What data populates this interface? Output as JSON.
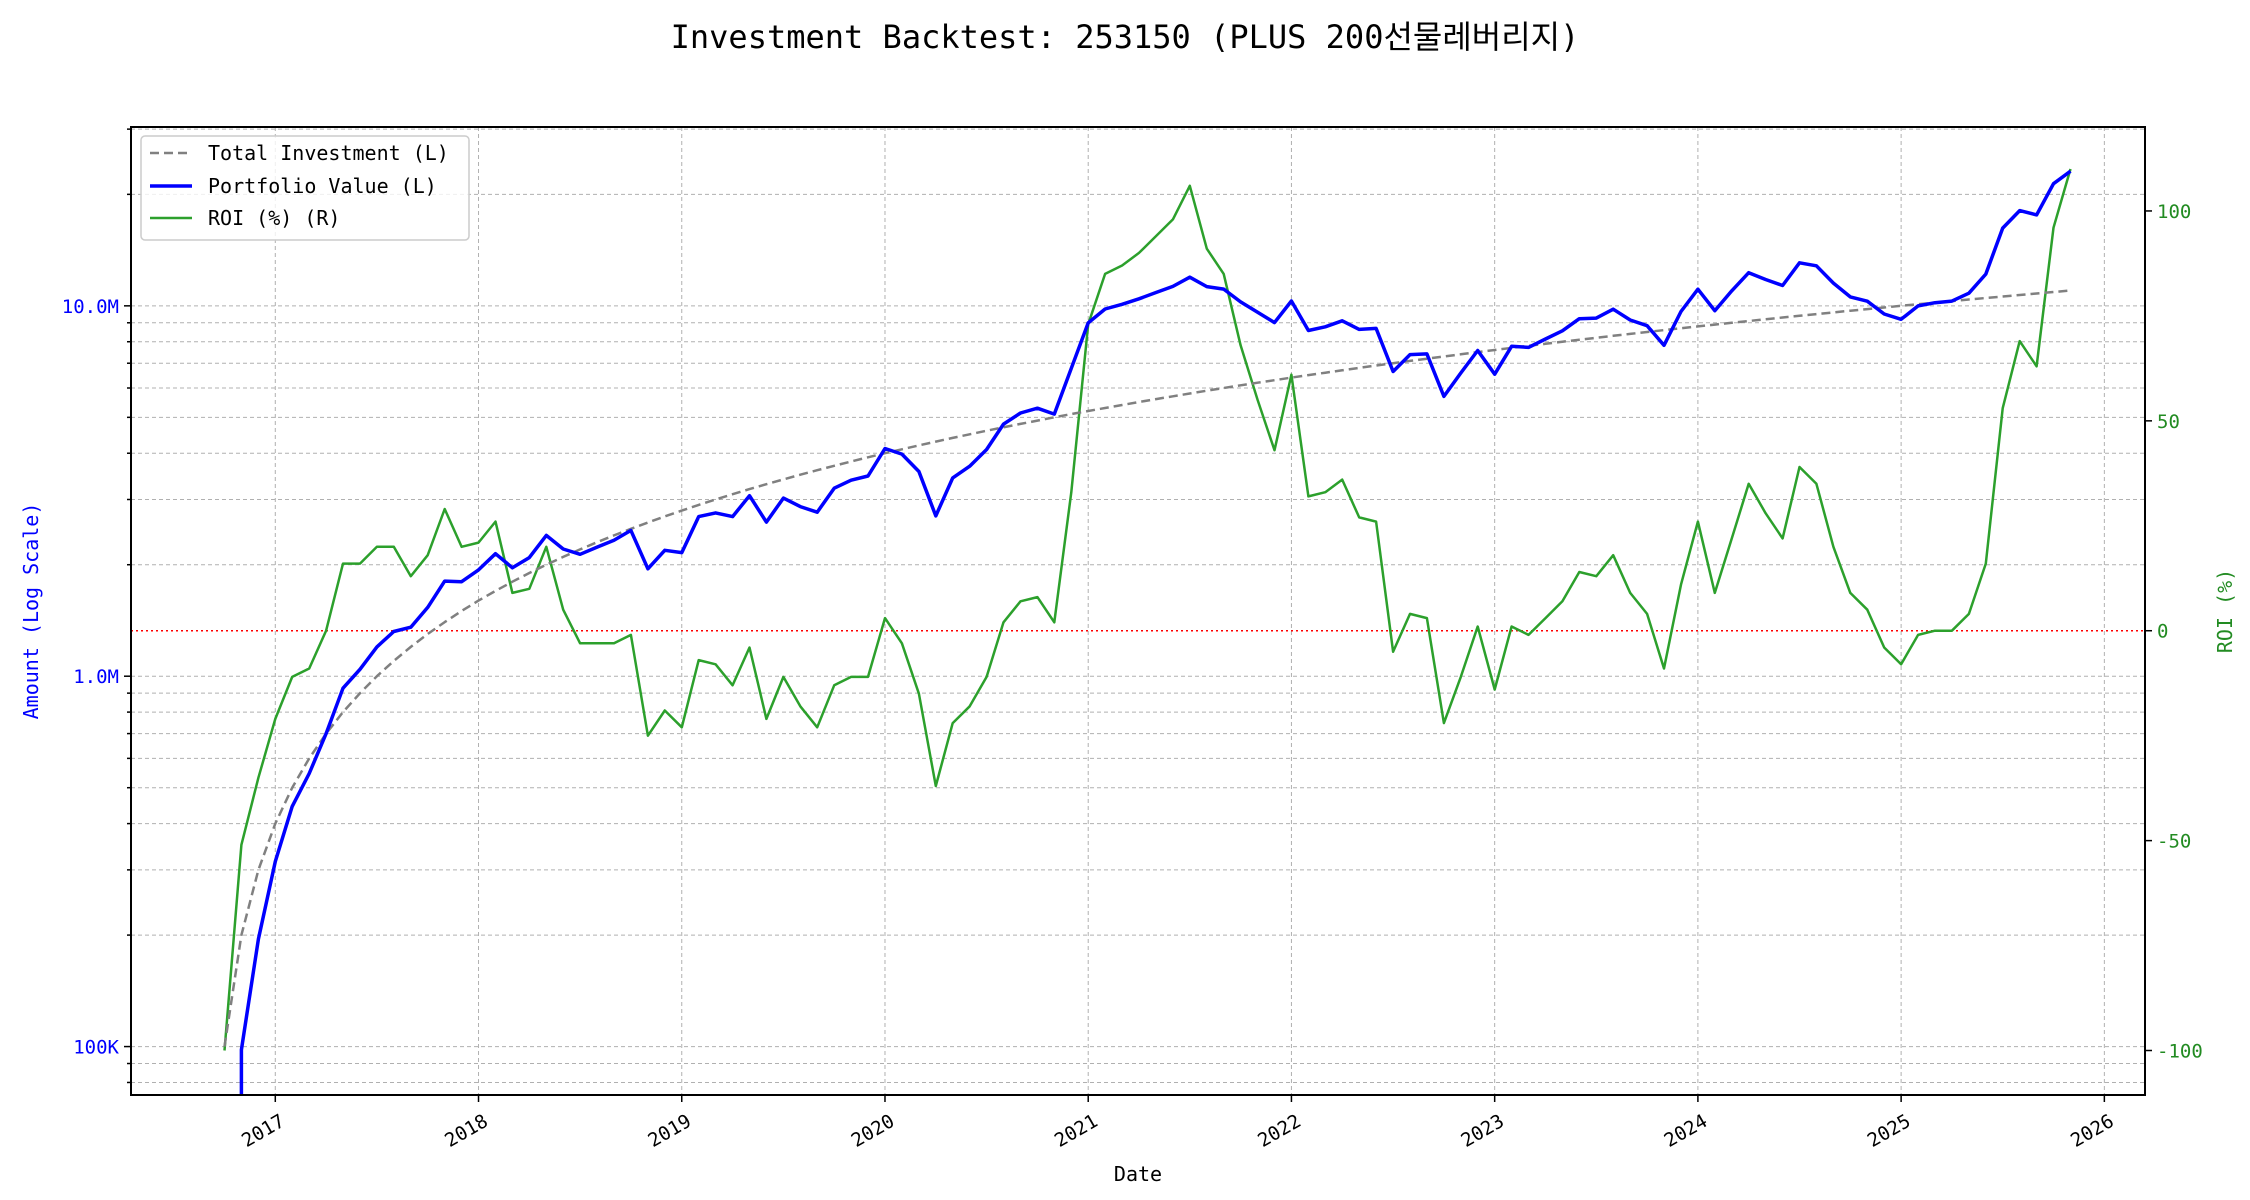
{
  "chart_data": {
    "type": "line",
    "title": "Investment Backtest: 253150 (PLUS 200선물레버리지)",
    "xlabel": "Date",
    "ylabel_left": "Amount (Log Scale)",
    "ylabel_right": "ROI (%)",
    "left_scale": "log",
    "xlim": [
      "2016-04",
      "2026-04"
    ],
    "ylim_left": [
      74000,
      30400000
    ],
    "ylim_right": [
      -110.6,
      120
    ],
    "grid": true,
    "legend_position": "top-left",
    "x_tick_labels": [
      "2017",
      "2018",
      "2019",
      "2020",
      "2021",
      "2022",
      "2023",
      "2024",
      "2025",
      "2026"
    ],
    "left_tick_labels": [
      {
        "value": 100000,
        "label": "100K"
      },
      {
        "value": 1000000,
        "label": "1.0M"
      },
      {
        "value": 10000000,
        "label": "10.0M"
      }
    ],
    "right_tick_labels": [
      {
        "value": -100,
        "label": "-100"
      },
      {
        "value": -50,
        "label": "-50"
      },
      {
        "value": 0,
        "label": "0"
      },
      {
        "value": 50,
        "label": "50"
      },
      {
        "value": 100,
        "label": "100"
      }
    ],
    "reference_line": {
      "axis": "right",
      "value": 0,
      "color": "#ff0000",
      "style": "dotted"
    },
    "x": [
      "2016-10",
      "2016-11",
      "2016-12",
      "2017-01",
      "2017-02",
      "2017-03",
      "2017-04",
      "2017-05",
      "2017-06",
      "2017-07",
      "2017-08",
      "2017-09",
      "2017-10",
      "2017-11",
      "2017-12",
      "2018-01",
      "2018-02",
      "2018-03",
      "2018-04",
      "2018-05",
      "2018-06",
      "2018-07",
      "2018-08",
      "2018-09",
      "2018-10",
      "2018-11",
      "2018-12",
      "2019-01",
      "2019-02",
      "2019-03",
      "2019-04",
      "2019-05",
      "2019-06",
      "2019-07",
      "2019-08",
      "2019-09",
      "2019-10",
      "2019-11",
      "2019-12",
      "2020-01",
      "2020-02",
      "2020-03",
      "2020-04",
      "2020-05",
      "2020-06",
      "2020-07",
      "2020-08",
      "2020-09",
      "2020-10",
      "2020-11",
      "2020-12",
      "2021-01",
      "2021-02",
      "2021-03",
      "2021-04",
      "2021-05",
      "2021-06",
      "2021-07",
      "2021-08",
      "2021-09",
      "2021-10",
      "2021-11",
      "2021-12",
      "2022-01",
      "2022-02",
      "2022-03",
      "2022-04",
      "2022-05",
      "2022-06",
      "2022-07",
      "2022-08",
      "2022-09",
      "2022-10",
      "2022-11",
      "2022-12",
      "2023-01",
      "2023-02",
      "2023-03",
      "2023-04",
      "2023-05",
      "2023-06",
      "2023-07",
      "2023-08",
      "2023-09",
      "2023-10",
      "2023-11",
      "2023-12",
      "2024-01",
      "2024-02",
      "2024-03",
      "2024-04",
      "2024-05",
      "2024-06",
      "2024-07",
      "2024-08",
      "2024-09",
      "2024-10",
      "2024-11",
      "2024-12",
      "2025-01",
      "2025-02",
      "2025-03",
      "2025-04",
      "2025-05",
      "2025-06",
      "2025-07",
      "2025-08",
      "2025-09",
      "2025-10",
      "2025-11"
    ],
    "series": [
      {
        "name": "Total Investment (L)",
        "axis": "left",
        "color": "#808080",
        "style": "dashed",
        "values": [
          100000,
          200000,
          300000,
          400000,
          500000,
          600000,
          700000,
          800000,
          900000,
          1000000,
          1100000,
          1200000,
          1300000,
          1400000,
          1500000,
          1600000,
          1700000,
          1800000,
          1900000,
          2000000,
          2100000,
          2200000,
          2300000,
          2400000,
          2500000,
          2600000,
          2700000,
          2800000,
          2900000,
          3000000,
          3100000,
          3200000,
          3300000,
          3400000,
          3500000,
          3600000,
          3700000,
          3800000,
          3900000,
          4000000,
          4100000,
          4200000,
          4300000,
          4400000,
          4500000,
          4600000,
          4700000,
          4800000,
          4900000,
          5000000,
          5100000,
          5200000,
          5300000,
          5400000,
          5500000,
          5600000,
          5700000,
          5800000,
          5900000,
          6000000,
          6100000,
          6200000,
          6300000,
          6400000,
          6500000,
          6600000,
          6700000,
          6800000,
          6900000,
          7000000,
          7100000,
          7200000,
          7300000,
          7400000,
          7500000,
          7600000,
          7700000,
          7800000,
          7900000,
          8000000,
          8100000,
          8200000,
          8300000,
          8400000,
          8500000,
          8600000,
          8700000,
          8800000,
          8900000,
          9000000,
          9100000,
          9200000,
          9300000,
          9400000,
          9500000,
          9600000,
          9700000,
          9800000,
          9900000,
          10000000,
          10100000,
          10200000,
          10300000,
          10400000,
          10500000,
          10600000,
          10700000,
          10800000,
          10900000,
          11000000
        ]
      },
      {
        "name": "Portfolio Value (L)",
        "axis": "left",
        "color": "#0000ff",
        "style": "solid",
        "values": [
          0,
          98000,
          195000,
          316000,
          445000,
          546000,
          700000,
          928000,
          1044000,
          1200000,
          1320000,
          1356000,
          1534000,
          1806000,
          1800000,
          1936000,
          2142000,
          1962000,
          2090000,
          2400000,
          2205000,
          2134000,
          2231000,
          2328000,
          2475000,
          1950000,
          2187000,
          2156000,
          2697000,
          2760000,
          2697000,
          3072000,
          2607000,
          3026000,
          2870000,
          2772000,
          3219000,
          3382000,
          3471000,
          4120000,
          3977000,
          3570000,
          2709000,
          3432000,
          3690000,
          4094000,
          4794000,
          5136000,
          5292000,
          5100000,
          6783000,
          8996000,
          9805000,
          10098000,
          10450000,
          10864000,
          11286000,
          11948000,
          11269000,
          11100000,
          10248000,
          9610000,
          9009000,
          10304000,
          8580000,
          8778000,
          9112000,
          8636000,
          8694000,
          6650000,
          7384000,
          7416000,
          5694000,
          6586000,
          7575000,
          6536000,
          7777000,
          7722000,
          8137000,
          8560000,
          9234000,
          9266000,
          9794000,
          9156000,
          8840000,
          7826000,
          9657000,
          11088000,
          9701000,
          10980000,
          12285000,
          11776000,
          11346000,
          13066000,
          12825000,
          11520000,
          10573000,
          10290000,
          9504000,
          9200000,
          9999000,
          10200000,
          10300000,
          10816000,
          12180000,
          16218000,
          18083000,
          17604000,
          21364000,
          23100000
        ]
      },
      {
        "name": "ROI (%) (R)",
        "axis": "right",
        "color": "#2ca02c",
        "style": "solid",
        "values": [
          -100,
          -51,
          -35,
          -21,
          -11,
          -9,
          0,
          16,
          16,
          20,
          20,
          13,
          18,
          29,
          20,
          21,
          26,
          9,
          10,
          20,
          5,
          -3,
          -3,
          -3,
          -1,
          -25,
          -19,
          -23,
          -7,
          -8,
          -13,
          -4,
          -21,
          -11,
          -18,
          -23,
          -13,
          -11,
          -11,
          3,
          -3,
          -15,
          -37,
          -22,
          -18,
          -11,
          2,
          7,
          8,
          2,
          33,
          73,
          85,
          87,
          90,
          94,
          98,
          106,
          91,
          85,
          68,
          55,
          43,
          61,
          32,
          33,
          36,
          27,
          26,
          -5,
          4,
          3,
          -22,
          -11,
          1,
          -14,
          1,
          -1,
          3,
          7,
          14,
          13,
          18,
          9,
          4,
          -9,
          11,
          26,
          9,
          22,
          35,
          28,
          22,
          39,
          35,
          20,
          9,
          5,
          -4,
          -8,
          -1,
          0,
          0,
          4,
          16,
          53,
          69,
          63,
          96,
          110
        ]
      }
    ]
  }
}
